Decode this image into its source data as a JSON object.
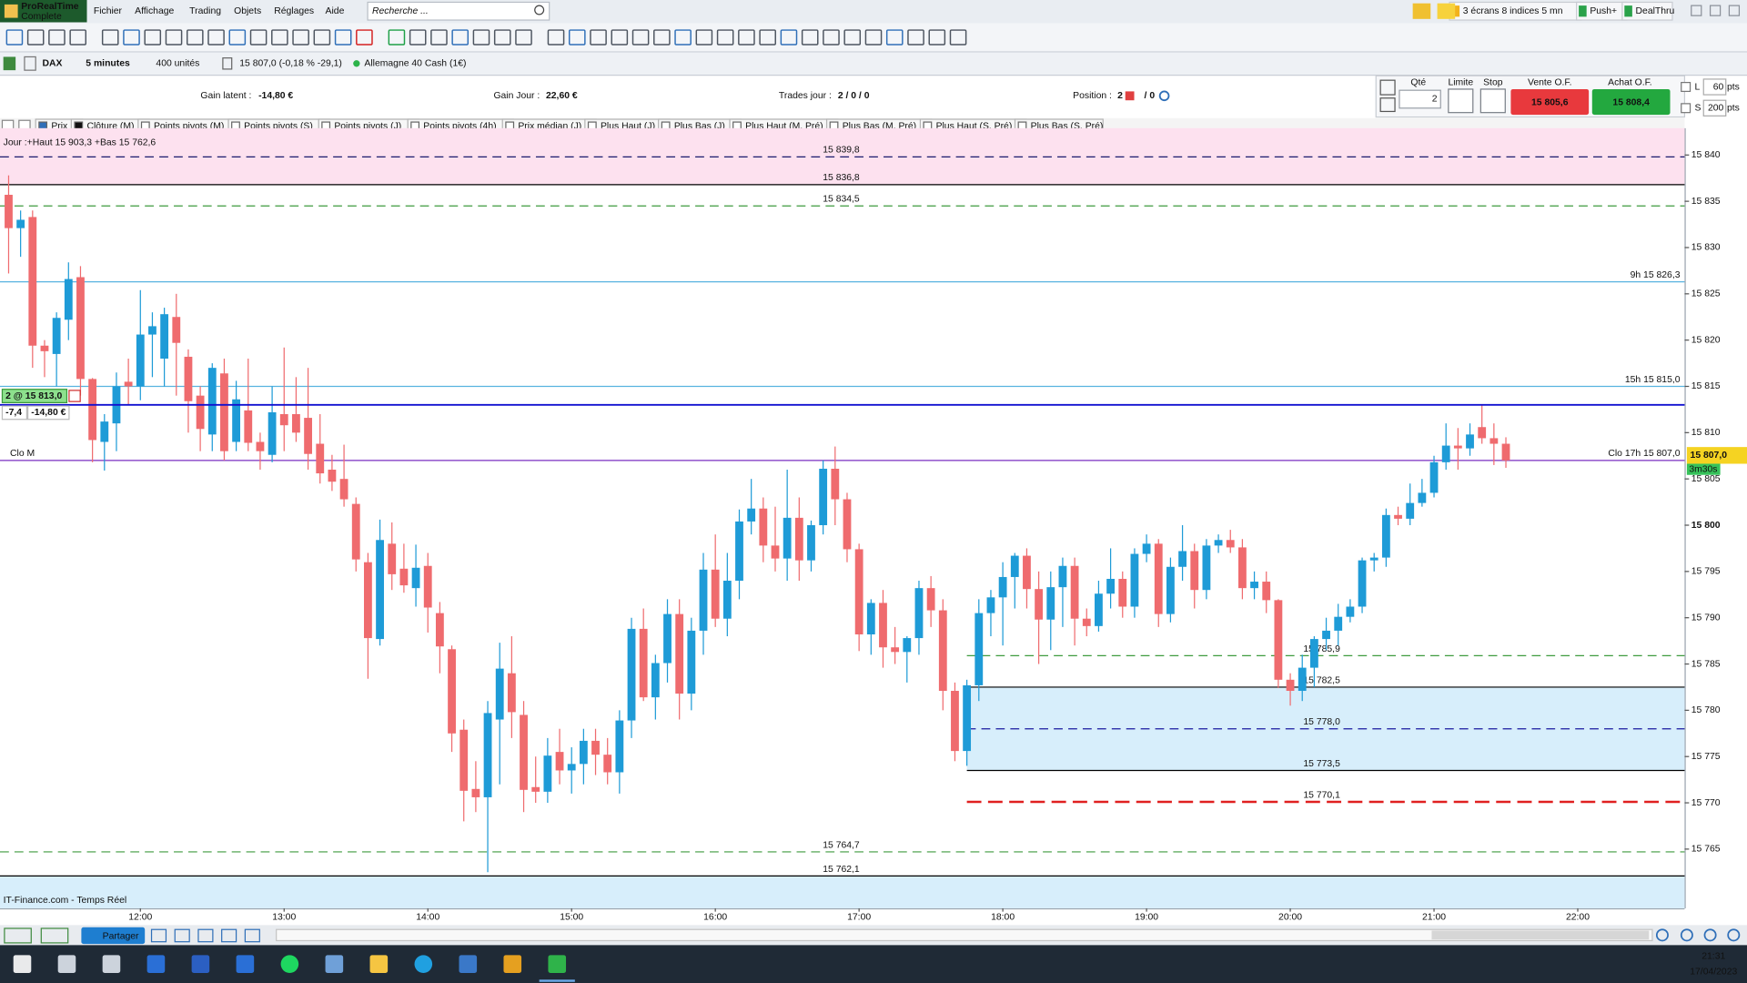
{
  "menu": {
    "logo": [
      "ProRealTime",
      "Complete"
    ],
    "items": [
      "Fichier",
      "Affichage",
      "Trading",
      "Objets",
      "Réglages",
      "Aide"
    ],
    "search_placeholder": "Recherche ...",
    "right": [
      "3 écrans 8 indices 5 mn",
      "Push+",
      "DealThru"
    ]
  },
  "instrument_bar": {
    "symbol": "DAX",
    "period": "5 minutes",
    "units": "400 unités",
    "quote": "15 807,0 (-0,18 % -29,1)",
    "name": "Allemagne 40 Cash (1€)"
  },
  "trading_bar": {
    "gain_latent_label": "Gain latent :",
    "gain_latent": "-14,80 €",
    "gain_jour_label": "Gain Jour :",
    "gain_jour": "22,60 €",
    "trades_label": "Trades jour :",
    "trades": "2 / 0 / 0",
    "position_label": "Position :",
    "position": "2",
    "position_rest": "/ 0"
  },
  "order_panel": {
    "qty_label": "Qté",
    "qty": "2",
    "limit_label": "Limite",
    "stop_label": "Stop",
    "sell_label": "Vente O.F.",
    "sell_price": "15 805,6",
    "buy_label": "Achat O.F.",
    "buy_price": "15 808,4",
    "l_label": "L",
    "l_value": "60",
    "s_label": "S",
    "s_value": "200",
    "unit": "pts"
  },
  "indicator_tabs": [
    "Prix",
    "Clôture (M)",
    "Points pivots (M)",
    "Points pivots (S)",
    "Points pivots (J)",
    "Points pivots (4h)",
    "Prix médian (J)",
    "Plus Haut (J)",
    "Plus Bas (J)",
    "Plus Haut (M, Pré)",
    "Plus Bas (M, Pré)",
    "Plus Haut (S, Pré)",
    "Plus Bas (S, Pré)"
  ],
  "chart_data": {
    "type": "candlestick",
    "header": "Jour :+Haut 15 903,3 +Bas 15 762,6",
    "footer": "IT-Finance.com - Temps Réel",
    "up_color": "#1e9bd7",
    "down_color": "#ef6b6e",
    "x": [
      665,
      670,
      675,
      680,
      685,
      690,
      695,
      700,
      705,
      710,
      715,
      720,
      725,
      730,
      735,
      740,
      745,
      750,
      755,
      760,
      765,
      770,
      775,
      780,
      785,
      790,
      795,
      800,
      805,
      810,
      815,
      820,
      825,
      830,
      835,
      840,
      845,
      850,
      855,
      860,
      865,
      870,
      875,
      880,
      885,
      890,
      895,
      900,
      905,
      910,
      915,
      920,
      925,
      930,
      935,
      940,
      945,
      950,
      955,
      960,
      965,
      970,
      975,
      980,
      985,
      990,
      995,
      1000,
      1005,
      1010,
      1015,
      1020,
      1025,
      1030,
      1035,
      1040,
      1045,
      1050,
      1055,
      1060,
      1065,
      1070,
      1075,
      1080,
      1085,
      1090,
      1095,
      1100,
      1105,
      1110,
      1115,
      1120,
      1125,
      1130,
      1135,
      1140,
      1145,
      1150,
      1155,
      1160,
      1165,
      1170,
      1175,
      1180,
      1185,
      1190,
      1195,
      1200,
      1205,
      1210,
      1215,
      1220,
      1225,
      1230,
      1235,
      1240,
      1245,
      1250,
      1255,
      1260,
      1265,
      1270,
      1275,
      1280,
      1285,
      1290
    ],
    "open": [
      15835.7,
      15832.1,
      15833.3,
      15819.4,
      15818.5,
      15822.2,
      15826.8,
      15815.8,
      15809.0,
      15811.0,
      15815.5,
      15815.0,
      15820.6,
      15818.0,
      15822.5,
      15818.2,
      15814.0,
      15809.8,
      15816.4,
      15809.0,
      15812.4,
      15809.0,
      15807.6,
      15812.0,
      15812.0,
      15811.6,
      15808.8,
      15806.0,
      15805.0,
      15802.3,
      15796.0,
      15787.7,
      15798.0,
      15795.3,
      15793.2,
      15795.6,
      15790.5,
      15786.6,
      15777.9,
      15771.5,
      15770.6,
      15779.0,
      15784.0,
      15779.5,
      15771.7,
      15771.2,
      15775.5,
      15773.5,
      15774.2,
      15776.7,
      15775.2,
      15773.3,
      15778.9,
      15788.8,
      15781.4,
      15785.1,
      15790.4,
      15781.8,
      15788.6,
      15795.2,
      15789.9,
      15794.0,
      15800.4,
      15801.8,
      15797.8,
      15796.4,
      15800.8,
      15796.2,
      15800.0,
      15806.1,
      15802.8,
      15797.4,
      15788.2,
      15791.6,
      15786.8,
      15786.3,
      15787.8,
      15793.2,
      15790.8,
      15782.1,
      15775.6,
      15782.7,
      15790.5,
      15792.2,
      15794.4,
      15796.7,
      15793.1,
      15789.8,
      15793.3,
      15795.6,
      15789.9,
      15789.1,
      15792.6,
      15794.2,
      15791.2,
      15796.9,
      15798.0,
      15790.4,
      15795.5,
      15797.2,
      15793.0,
      15797.8,
      15798.4,
      15797.6,
      15793.2,
      15793.9,
      15791.9,
      15783.3,
      15782.1,
      15784.6,
      15787.7,
      15788.6,
      15790.1,
      15791.2,
      15796.2,
      15796.5,
      15801.1,
      15800.7,
      15802.4,
      15803.5,
      15806.8,
      15808.6,
      15808.3,
      15810.6,
      15809.4,
      15808.8
    ],
    "high": [
      15837.8,
      15834.0,
      15834.0,
      15820.0,
      15823.0,
      15828.4,
      15828.0,
      15815.9,
      15812.0,
      15816.5,
      15818.0,
      15825.4,
      15823.0,
      15823.5,
      15825.0,
      15819.0,
      15815.0,
      15817.5,
      15818.0,
      15815.6,
      15818.0,
      15810.0,
      15815.0,
      15819.2,
      15816.0,
      15817.0,
      15812.0,
      15807.6,
      15808.7,
      15803.0,
      15797.0,
      15800.6,
      15800.3,
      15798.0,
      15797.9,
      15797.0,
      15791.7,
      15787.0,
      15779.0,
      15774.5,
      15781.0,
      15787.3,
      15788.0,
      15781.0,
      15775.0,
      15777.0,
      15778.0,
      15776.0,
      15778.0,
      15778.0,
      15777.0,
      15780.0,
      15790.0,
      15791.0,
      15786.0,
      15792.0,
      15792.0,
      15790.0,
      15797.0,
      15799.0,
      15797.0,
      15801.7,
      15805.0,
      15803.0,
      15802.0,
      15806.0,
      15803.0,
      15800.5,
      15807.0,
      15808.5,
      15803.5,
      15798.0,
      15792.0,
      15793.0,
      15789.0,
      15788.0,
      15794.0,
      15794.5,
      15792.0,
      15783.0,
      15783.3,
      15792.0,
      15793.0,
      15796.0,
      15797.0,
      15797.5,
      15795.0,
      15795.0,
      15796.5,
      15796.5,
      15791.0,
      15794.0,
      15797.5,
      15795.0,
      15797.5,
      15799.0,
      15798.5,
      15796.5,
      15800.0,
      15798.0,
      15798.5,
      15799.0,
      15799.5,
      15798.5,
      15795.0,
      15795.0,
      15792.0,
      15784.0,
      15786.0,
      15788.0,
      15790.0,
      15791.5,
      15792.0,
      15796.5,
      15797.0,
      15801.8,
      15802.0,
      15804.5,
      15805.0,
      15807.5,
      15811.0,
      15810.5,
      15811.0,
      15813.0,
      15811.0,
      15809.5
    ],
    "low": [
      15827.2,
      15829.0,
      15817.0,
      15816.0,
      15815.0,
      15820.0,
      15814.0,
      15806.8,
      15805.9,
      15808.0,
      15813.0,
      15813.5,
      15816.0,
      15815.0,
      15814.0,
      15810.0,
      15808.0,
      15808.0,
      15807.0,
      15808.0,
      15808.0,
      15806.0,
      15806.8,
      15808.0,
      15809.0,
      15806.0,
      15804.5,
      15803.7,
      15802.0,
      15795.0,
      15783.4,
      15787.0,
      15793.0,
      15792.7,
      15791.2,
      15788.4,
      15784.0,
      15775.5,
      15768.0,
      15769.0,
      15762.5,
      15772.0,
      15777.0,
      15769.0,
      15770.0,
      15770.0,
      15772.0,
      15771.0,
      15772.0,
      15773.0,
      15772.0,
      15771.0,
      15777.0,
      15781.0,
      15779.0,
      15783.0,
      15779.0,
      15780.0,
      15786.0,
      15789.0,
      15788.0,
      15792.0,
      15799.0,
      15796.0,
      15795.0,
      15794.0,
      15794.0,
      15795.0,
      15799.0,
      15800.0,
      15796.0,
      15786.4,
      15786.0,
      15784.6,
      15785.0,
      15783.0,
      15786.0,
      15789.0,
      15780.0,
      15774.5,
      15774.0,
      15781.0,
      15788.0,
      15787.0,
      15791.0,
      15791.0,
      15785.0,
      15786.5,
      15789.0,
      15787.0,
      15788.0,
      15788.5,
      15791.0,
      15790.0,
      15790.0,
      15796.0,
      15789.0,
      15789.5,
      15794.0,
      15791.0,
      15792.0,
      15797.0,
      15797.0,
      15792.0,
      15792.0,
      15790.5,
      15782.4,
      15780.5,
      15781.0,
      15782.5,
      15786.5,
      15787.0,
      15789.5,
      15790.5,
      15795.0,
      15795.5,
      15800.0,
      15800.0,
      15802.0,
      15803.0,
      15806.0,
      15806.0,
      15807.5,
      15808.8,
      15806.5,
      15806.2
    ],
    "close": [
      15832.1,
      15833.0,
      15819.4,
      15818.8,
      15822.4,
      15826.6,
      15815.8,
      15809.2,
      15811.2,
      15815.0,
      15815.0,
      15820.6,
      15821.5,
      15822.8,
      15819.7,
      15813.4,
      15810.4,
      15817.0,
      15808.0,
      15813.6,
      15808.9,
      15808.0,
      15812.2,
      15810.8,
      15810.0,
      15807.7,
      15805.6,
      15804.7,
      15802.8,
      15796.3,
      15787.8,
      15798.4,
      15794.7,
      15793.5,
      15795.4,
      15791.1,
      15786.9,
      15777.5,
      15771.3,
      15770.6,
      15779.7,
      15784.5,
      15779.8,
      15771.4,
      15771.2,
      15775.1,
      15773.5,
      15774.2,
      15776.7,
      15775.2,
      15773.3,
      15778.9,
      15788.8,
      15781.4,
      15785.1,
      15790.4,
      15781.8,
      15788.6,
      15795.2,
      15789.9,
      15794.0,
      15800.4,
      15801.8,
      15797.8,
      15796.4,
      15800.8,
      15796.2,
      15800.0,
      15806.1,
      15802.8,
      15797.4,
      15788.2,
      15791.6,
      15786.8,
      15786.3,
      15787.8,
      15793.2,
      15790.8,
      15782.1,
      15775.6,
      15782.7,
      15790.5,
      15792.2,
      15794.4,
      15796.7,
      15793.1,
      15789.8,
      15793.3,
      15795.6,
      15789.9,
      15789.1,
      15792.6,
      15794.2,
      15791.2,
      15796.9,
      15798.0,
      15790.4,
      15795.5,
      15797.2,
      15793.0,
      15797.8,
      15798.4,
      15797.6,
      15793.2,
      15793.9,
      15791.9,
      15783.3,
      15782.1,
      15784.6,
      15787.7,
      15788.6,
      15790.1,
      15791.2,
      15796.2,
      15796.5,
      15801.1,
      15800.7,
      15802.4,
      15803.5,
      15806.8,
      15808.6,
      15808.3,
      15809.8,
      15809.4,
      15808.8,
      15807.0
    ],
    "xlim": [
      661.4,
      1364.6
    ],
    "xticks": [
      {
        "value": 720,
        "label": "12:00"
      },
      {
        "value": 780,
        "label": "13:00"
      },
      {
        "value": 840,
        "label": "14:00"
      },
      {
        "value": 900,
        "label": "15:00"
      },
      {
        "value": 960,
        "label": "16:00"
      },
      {
        "value": 1020,
        "label": "17:00"
      },
      {
        "value": 1080,
        "label": "18:00"
      },
      {
        "value": 1140,
        "label": "19:00"
      },
      {
        "value": 1200,
        "label": "20:00"
      },
      {
        "value": 1260,
        "label": "21:00"
      },
      {
        "value": 1320,
        "label": "22:00"
      }
    ],
    "ylim": [
      15758.6,
      15842.9
    ],
    "yticks": [
      {
        "value": 15840,
        "label": "15 840"
      },
      {
        "value": 15835,
        "label": "15 835"
      },
      {
        "value": 15830,
        "label": "15 830"
      },
      {
        "value": 15825,
        "label": "15 825"
      },
      {
        "value": 15820,
        "label": "15 820"
      },
      {
        "value": 15815,
        "label": "15 815"
      },
      {
        "value": 15810,
        "label": "15 810"
      },
      {
        "value": 15805,
        "label": "15 805"
      },
      {
        "value": 15800,
        "label": "15 800"
      },
      {
        "value": 15795,
        "label": "15 795"
      },
      {
        "value": 15790,
        "label": "15 790"
      },
      {
        "value": 15785,
        "label": "15 785"
      },
      {
        "value": 15780,
        "label": "15 780"
      },
      {
        "value": 15775,
        "label": "15 775"
      },
      {
        "value": 15770,
        "label": "15 770"
      },
      {
        "value": 15765,
        "label": "15 765"
      }
    ],
    "bands": [
      {
        "from": 15836.8,
        "to": 15842.9,
        "color": "#fde1ef"
      },
      {
        "from": 15758.6,
        "to": 15762.1,
        "color": "#d7eefb"
      }
    ],
    "zone": {
      "from": 15773.5,
      "to": 15782.5,
      "x_start": 1065,
      "color": "#d7eefb"
    },
    "levels": [
      {
        "value": 15839.8,
        "label": "15 839,8",
        "color": "#1a1a6e",
        "style": "dash",
        "label_position": "center"
      },
      {
        "value": 15836.8,
        "label": "15 836,8",
        "color": "#000000",
        "style": "solid",
        "label_position": "center"
      },
      {
        "value": 15834.5,
        "label": "15 834,5",
        "color": "#3f9b3f",
        "style": "dash",
        "label_position": "center"
      },
      {
        "value": 15826.3,
        "label": "9h 15 826,3",
        "color": "#58b3e0",
        "style": "solid",
        "label_position": "right"
      },
      {
        "value": 15815.0,
        "label": "15h 15 815,0",
        "color": "#58b3e0",
        "style": "solid",
        "label_position": "right"
      },
      {
        "value": 15807.0,
        "label": "Clo 17h 15 807,0",
        "left_label": "Clo M",
        "color": "#7a2fc0",
        "style": "solid",
        "label_position": "right"
      },
      {
        "value": 15785.9,
        "label": "15 785,9",
        "color": "#3f9b3f",
        "style": "dash",
        "label_position": "zone",
        "x_start": 1065
      },
      {
        "value": 15782.5,
        "label": "15 782,5",
        "color": "#000000",
        "style": "solid",
        "label_position": "zone",
        "x_start": 1065
      },
      {
        "value": 15778.0,
        "label": "15 778,0",
        "color": "#1a1aa0",
        "style": "dash",
        "label_position": "zone",
        "x_start": 1065
      },
      {
        "value": 15773.5,
        "label": "15 773,5",
        "color": "#000000",
        "style": "solid",
        "label_position": "zone",
        "x_start": 1065
      },
      {
        "value": 15770.1,
        "label": "15 770,1",
        "color": "#e02020",
        "style": "bold-dash",
        "label_position": "zone",
        "x_start": 1065
      },
      {
        "value": 15764.7,
        "label": "15 764,7",
        "color": "#3f9b3f",
        "style": "dash",
        "label_position": "center"
      },
      {
        "value": 15762.1,
        "label": "15 762,1",
        "color": "#000000",
        "style": "solid",
        "label_position": "center"
      }
    ],
    "position": {
      "price": 15813.0,
      "label": "2 @ 15 813,0",
      "points": "-7,4",
      "pnl": "-14,80 €",
      "color": "#1010d0"
    },
    "last_price": {
      "value": 15807.0,
      "label": "15 807,0",
      "timer": "3m30s"
    }
  },
  "taskbar": {
    "time": "21:31",
    "date": "17/04/2023"
  }
}
